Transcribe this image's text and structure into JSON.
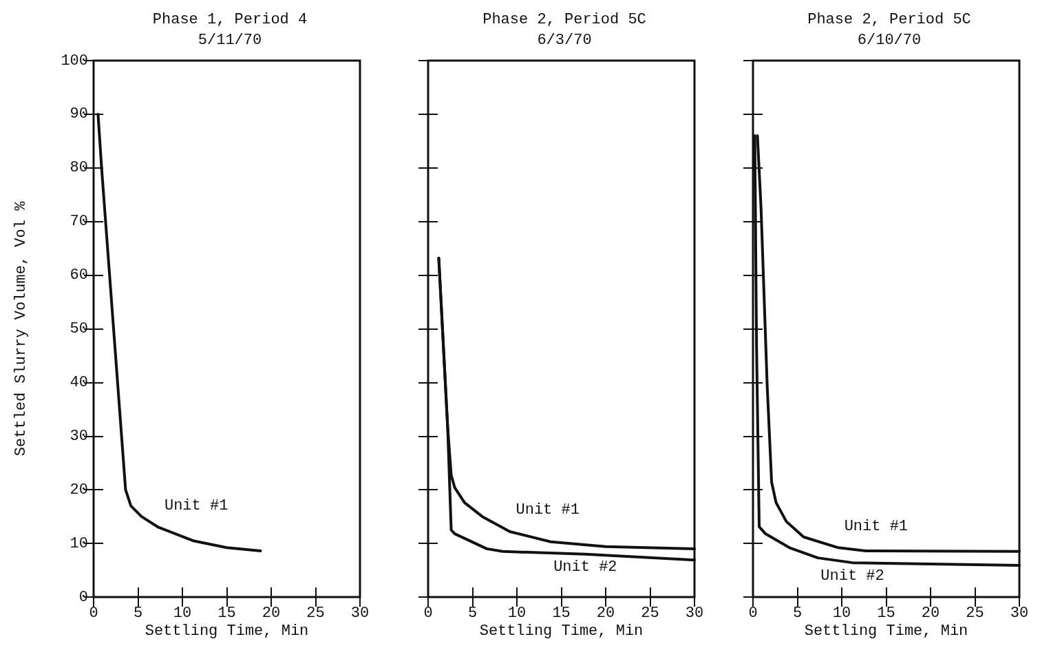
{
  "chart_data": [
    {
      "type": "line",
      "title": "Phase 1, Period 4\n5/11/70",
      "xlabel": "Settling Time, Min",
      "ylabel": "Settled Slurry Volume, Vol %",
      "xlim": [
        0,
        30
      ],
      "xticks": [
        0,
        5,
        10,
        15,
        20,
        25,
        30
      ],
      "ylim": [
        0,
        100
      ],
      "yticks": [
        0,
        10,
        20,
        30,
        40,
        50,
        60,
        70,
        80,
        90,
        100
      ],
      "grid": false,
      "legend": false,
      "marker": "none",
      "line_style": "solid",
      "series": [
        {
          "name": "Unit #1",
          "color": "#111111",
          "x": [
            0.5,
            0.9,
            3.6,
            4.2,
            5.4,
            7.3,
            11.2,
            15,
            18.8
          ],
          "values": [
            90,
            80,
            20,
            17,
            15,
            13,
            10.5,
            9.2,
            8.6
          ]
        }
      ]
    },
    {
      "type": "line",
      "title": "Phase 2, Period 5C\n6/3/70",
      "xlabel": "Settling Time, Min",
      "xlim": [
        0,
        30
      ],
      "xticks": [
        0,
        5,
        10,
        15,
        20,
        25,
        30
      ],
      "ylim": [
        0,
        100
      ],
      "yticks": [
        0,
        10,
        20,
        30,
        40,
        50,
        60,
        70,
        80,
        90,
        100
      ],
      "tick_labels": "x",
      "grid": false,
      "legend": false,
      "marker": "none",
      "line_style": "solid",
      "series": [
        {
          "name": "Unit #1",
          "color": "#111111",
          "x": [
            1.2,
            2.2,
            2.6,
            3,
            4.1,
            6.1,
            9.2,
            13.8,
            20,
            30
          ],
          "values": [
            63.2,
            31.7,
            22.7,
            20.4,
            17.6,
            15,
            12.2,
            10.3,
            9.4,
            9
          ]
        },
        {
          "name": "Unit #2",
          "color": "#111111",
          "x": [
            1.2,
            2.2,
            2.6,
            3,
            6.6,
            8.4,
            17.7,
            30
          ],
          "values": [
            63.2,
            31.7,
            12.5,
            11.8,
            9,
            8.5,
            8,
            6.9
          ]
        }
      ]
    },
    {
      "type": "line",
      "title": "Phase 2, Period 5C\n6/10/70",
      "xlabel": "Settling Time, Min",
      "xlim": [
        0,
        30
      ],
      "xticks": [
        0,
        5,
        10,
        15,
        20,
        25,
        30
      ],
      "ylim": [
        0,
        100
      ],
      "yticks": [
        0,
        10,
        20,
        30,
        40,
        50,
        60,
        70,
        80,
        90,
        100
      ],
      "tick_labels": "x",
      "grid": false,
      "legend": false,
      "marker": "none",
      "line_style": "solid",
      "series": [
        {
          "name": "Unit #1",
          "color": "#111111",
          "x": [
            0.5,
            0.9,
            1.6,
            2.1,
            2.6,
            3.75,
            5.7,
            9.6,
            12.7,
            30
          ],
          "values": [
            86,
            72.8,
            39.4,
            21.4,
            17.6,
            14.1,
            11.2,
            9.2,
            8.6,
            8.5
          ]
        },
        {
          "name": "Unit #2",
          "color": "#111111",
          "x": [
            0.2,
            0.4,
            0.7,
            1.4,
            4.1,
            7.3,
            11.2,
            30
          ],
          "values": [
            86,
            47,
            13.1,
            11.8,
            9.2,
            7.3,
            6.4,
            5.9
          ]
        }
      ]
    }
  ]
}
